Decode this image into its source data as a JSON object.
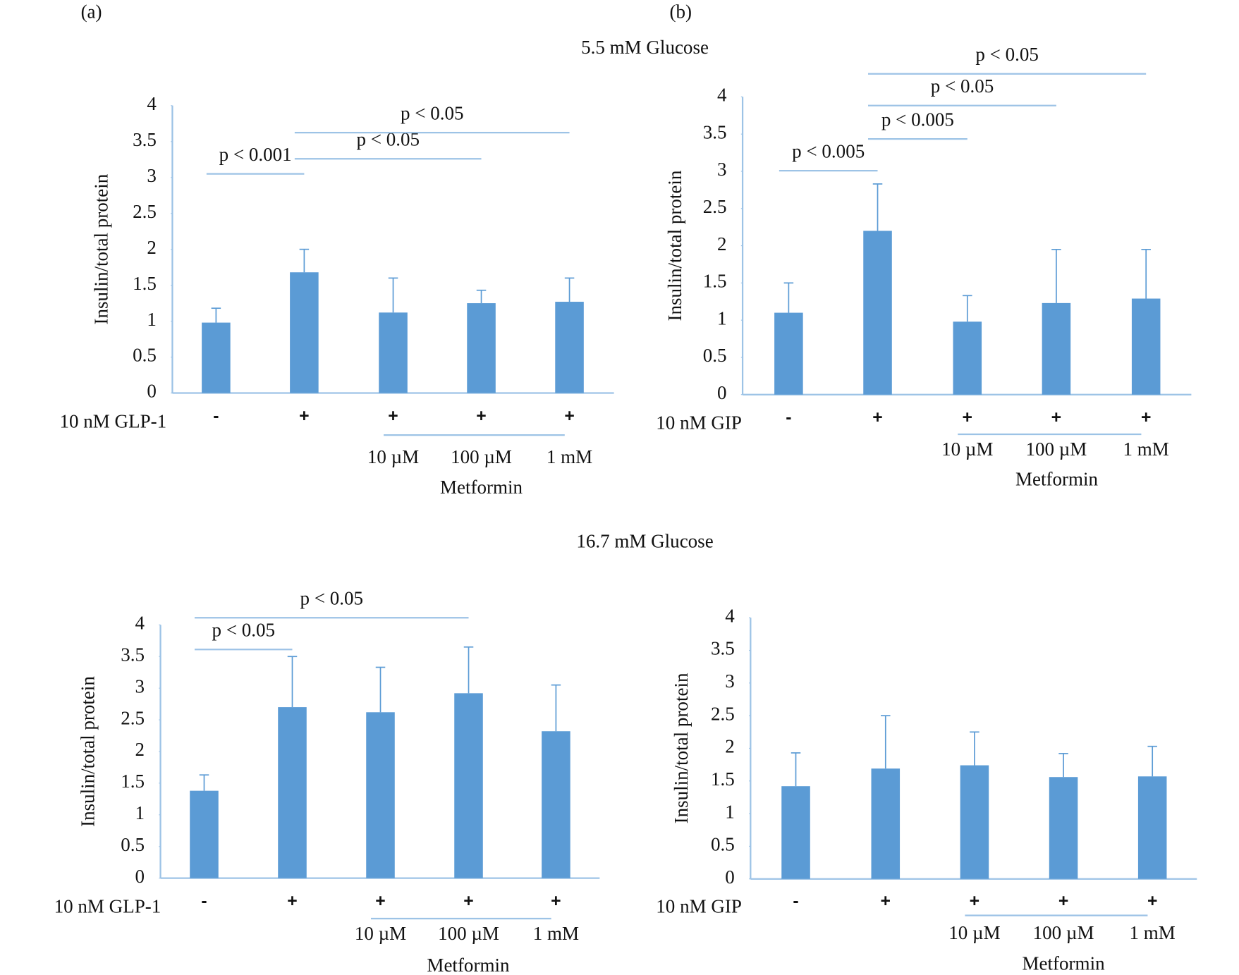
{
  "figure": {
    "panels": [
      "(a)",
      "(b)"
    ],
    "sections": [
      "5.5 mM Glucose",
      "16.7 mM Glucose"
    ]
  },
  "chart_data": [
    {
      "type": "bar",
      "ylabel": "Insulin/total protein",
      "treatment": "10 nM GLP-1",
      "categories": [
        "-",
        "+",
        "+",
        "+",
        "+"
      ],
      "doses": [
        null,
        null,
        "10 µM",
        "100 µM",
        "1 mM"
      ],
      "dose_group": "Metformin",
      "values": [
        0.98,
        1.68,
        1.12,
        1.25,
        1.27
      ],
      "errors": [
        0.2,
        0.32,
        0.48,
        0.18,
        0.33
      ],
      "color": "#5b9bd5",
      "ylim": [
        0,
        4
      ],
      "yticks": [
        0,
        0.5,
        1,
        1.5,
        2,
        2.5,
        3,
        3.5,
        4
      ],
      "annotations": [
        {
          "text": "p < 0.001",
          "from": 0,
          "to": 1
        },
        {
          "text": "p < 0.05",
          "from": 1,
          "to": 3
        },
        {
          "text": "p < 0.05",
          "from": 1,
          "to": 4
        }
      ]
    },
    {
      "type": "bar",
      "ylabel": "Insulin/total protein",
      "treatment": "10 nM GIP",
      "categories": [
        "-",
        "+",
        "+",
        "+",
        "+"
      ],
      "doses": [
        null,
        null,
        "10 µM",
        "100 µM",
        "1 mM"
      ],
      "dose_group": "Metformin",
      "values": [
        1.1,
        2.2,
        0.98,
        1.23,
        1.29
      ],
      "errors": [
        0.4,
        0.63,
        0.35,
        0.72,
        0.66
      ],
      "color": "#5b9bd5",
      "ylim": [
        0,
        4
      ],
      "yticks": [
        0,
        0.5,
        1,
        1.5,
        2,
        2.5,
        3,
        3.5,
        4
      ],
      "annotations": [
        {
          "text": "p < 0.005",
          "from": 0,
          "to": 1
        },
        {
          "text": "p < 0.005",
          "from": 1,
          "to": 2
        },
        {
          "text": "p < 0.05",
          "from": 1,
          "to": 3
        },
        {
          "text": "p < 0.05",
          "from": 1,
          "to": 4
        }
      ]
    },
    {
      "type": "bar",
      "ylabel": "Insulin/total protein",
      "treatment": "10 nM GLP-1",
      "categories": [
        "-",
        "+",
        "+",
        "+",
        "+"
      ],
      "doses": [
        null,
        null,
        "10 µM",
        "100 µM",
        "1 mM"
      ],
      "dose_group": "Metformin",
      "values": [
        1.38,
        2.7,
        2.62,
        2.92,
        2.32
      ],
      "errors": [
        0.25,
        0.8,
        0.71,
        0.73,
        0.73
      ],
      "color": "#5b9bd5",
      "ylim": [
        0,
        4
      ],
      "yticks": [
        0,
        0.5,
        1,
        1.5,
        2,
        2.5,
        3,
        3.5,
        4
      ],
      "annotations": [
        {
          "text": "p < 0.05",
          "from": 0,
          "to": 1
        },
        {
          "text": "p < 0.05",
          "from": 0,
          "to": 3
        }
      ]
    },
    {
      "type": "bar",
      "ylabel": "Insulin/total protein",
      "treatment": "10 nM GIP",
      "categories": [
        "-",
        "+",
        "+",
        "+",
        "+"
      ],
      "doses": [
        null,
        null,
        "10 µM",
        "100 µM",
        "1 mM"
      ],
      "dose_group": "Metformin",
      "values": [
        1.42,
        1.69,
        1.74,
        1.56,
        1.57
      ],
      "errors": [
        0.51,
        0.81,
        0.51,
        0.36,
        0.46
      ],
      "color": "#5b9bd5",
      "ylim": [
        0,
        4
      ],
      "yticks": [
        0,
        0.5,
        1,
        1.5,
        2,
        2.5,
        3,
        3.5,
        4
      ],
      "annotations": []
    }
  ]
}
